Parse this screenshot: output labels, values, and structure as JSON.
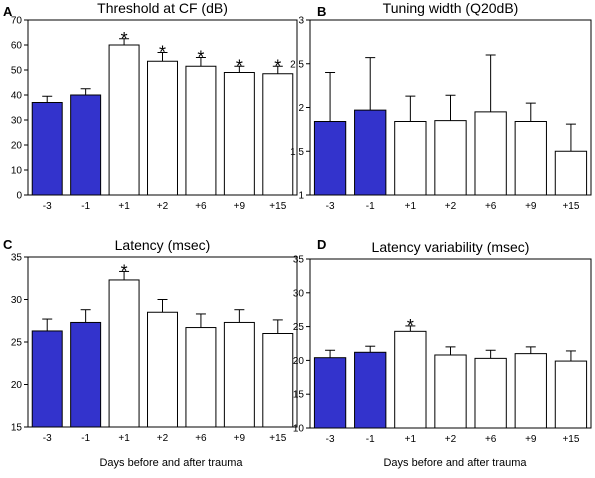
{
  "figure": {
    "caption_left": "Days before and after trauma",
    "caption_right": "Days before and after trauma"
  },
  "colors": {
    "before_fill": "#3333cc",
    "after_fill": "#ffffff",
    "stroke": "#000000"
  },
  "chart_data": [
    {
      "panel": "A",
      "type": "bar",
      "title": "Threshold at CF (dB)",
      "categories": [
        "-3",
        "-1",
        "+1",
        "+2",
        "+6",
        "+9",
        "+15"
      ],
      "values": [
        37,
        40,
        60,
        53.5,
        51.5,
        49,
        48.5
      ],
      "errors": [
        2.5,
        2.5,
        2.5,
        3.5,
        3.5,
        2.5,
        3
      ],
      "significant": [
        false,
        false,
        true,
        true,
        true,
        true,
        true
      ],
      "significance_marker": "*",
      "ylim": [
        0,
        70
      ],
      "yticks": [
        0,
        10,
        20,
        30,
        40,
        50,
        60,
        70
      ],
      "ytick_labels": [
        "0",
        "10",
        "20",
        "30",
        "40",
        "50",
        "60",
        "70"
      ],
      "before_trauma_count": 2
    },
    {
      "panel": "B",
      "type": "bar",
      "title": "Tuning width (Q20dB)",
      "categories": [
        "-3",
        "-1",
        "+1",
        "+2",
        "+6",
        "+9",
        "+15"
      ],
      "values": [
        1.84,
        1.97,
        1.84,
        1.85,
        1.95,
        1.84,
        1.5
      ],
      "errors": [
        0.56,
        0.6,
        0.29,
        0.29,
        0.65,
        0.21,
        0.31
      ],
      "significant": [
        false,
        false,
        false,
        false,
        false,
        false,
        false
      ],
      "significance_marker": "*",
      "ylim": [
        1,
        3
      ],
      "yticks": [
        1,
        1.5,
        2,
        2.5,
        3
      ],
      "ytick_labels": [
        "1",
        "1,5",
        "2",
        "2,5",
        "3"
      ],
      "before_trauma_count": 2
    },
    {
      "panel": "C",
      "type": "bar",
      "title": "Latency (msec)",
      "categories": [
        "-3",
        "-1",
        "+1",
        "+2",
        "+6",
        "+9",
        "+15"
      ],
      "values": [
        26.3,
        27.3,
        32.3,
        28.5,
        26.7,
        27.3,
        26
      ],
      "errors": [
        1.4,
        1.5,
        1.0,
        1.5,
        1.6,
        1.5,
        1.6
      ],
      "significant": [
        false,
        false,
        true,
        false,
        false,
        false,
        false
      ],
      "significance_marker": "*",
      "ylim": [
        15,
        35
      ],
      "yticks": [
        15,
        20,
        25,
        30,
        35
      ],
      "ytick_labels": [
        "15",
        "20",
        "25",
        "30",
        "35"
      ],
      "before_trauma_count": 2
    },
    {
      "panel": "D",
      "type": "bar",
      "title": "Latency variability (msec)",
      "categories": [
        "-3",
        "-1",
        "+1",
        "+2",
        "+6",
        "+9",
        "+15"
      ],
      "values": [
        20.4,
        21.2,
        24.3,
        20.8,
        20.3,
        21,
        19.9
      ],
      "errors": [
        1.1,
        0.9,
        0.8,
        1.2,
        1.2,
        1.0,
        1.5
      ],
      "significant": [
        false,
        false,
        true,
        false,
        false,
        false,
        false
      ],
      "significance_marker": "*",
      "ylim": [
        10,
        35
      ],
      "yticks": [
        10,
        15,
        20,
        25,
        30,
        35
      ],
      "ytick_labels": [
        "10",
        "15",
        "20",
        "25",
        "30",
        "35"
      ],
      "before_trauma_count": 2
    }
  ]
}
